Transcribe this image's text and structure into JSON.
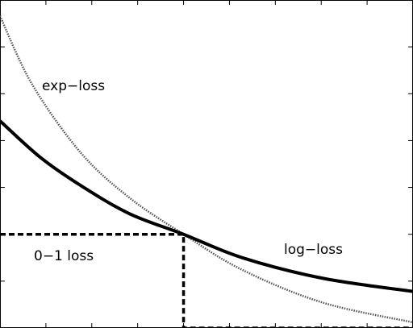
{
  "chart_data": {
    "type": "line",
    "annotations": [
      "exp−loss",
      "0−1 loss",
      "log−loss"
    ],
    "xlim": [
      -2,
      2.5
    ],
    "ylim": [
      0,
      3.5
    ],
    "xticks": [
      -1.5,
      -1,
      -0.5,
      0,
      0.5,
      1,
      1.5,
      2
    ],
    "yticks": [
      0.5,
      1,
      1.5,
      2,
      2.5,
      3
    ],
    "grid": false,
    "series": [
      {
        "name": "exp−loss",
        "color": "#555555",
        "style": "dotted",
        "x": [
          -2,
          -1.65,
          -1.12,
          -0.59,
          0,
          0.64,
          1.52,
          2.5
        ],
        "values": [
          3.33,
          2.6,
          1.87,
          1.39,
          1,
          0.62,
          0.27,
          0.06
        ]
      },
      {
        "name": "log−loss",
        "color": "#000000",
        "style": "solid",
        "x": [
          -2,
          -1.56,
          -1.12,
          -0.59,
          0,
          0.64,
          1.52,
          2.5
        ],
        "values": [
          2.21,
          1.82,
          1.52,
          1.22,
          1,
          0.75,
          0.53,
          0.39
        ]
      },
      {
        "name": "0−1 loss",
        "color": "#000000",
        "style": "dashed",
        "x": [
          -2,
          0,
          0,
          2.5
        ],
        "values": [
          1,
          1,
          0,
          0
        ]
      }
    ]
  }
}
